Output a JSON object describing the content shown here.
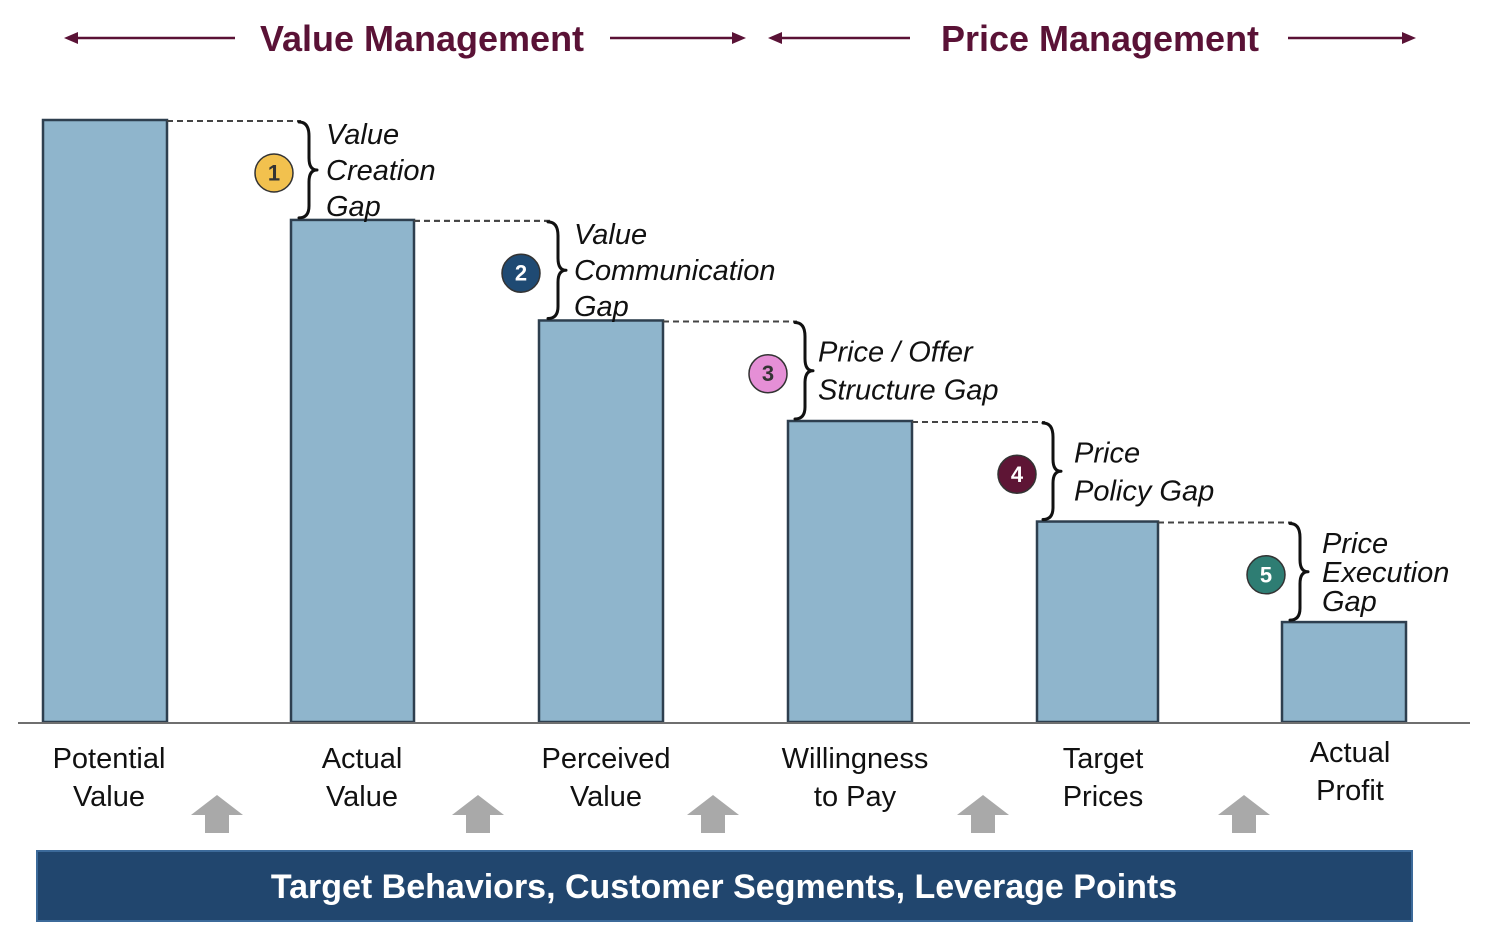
{
  "headers": {
    "value_management": "Value Management",
    "price_management": "Price Management"
  },
  "bars": [
    {
      "name": "potential-value",
      "label": [
        "Potential",
        "Value"
      ],
      "level": 1.0
    },
    {
      "name": "actual-value",
      "label": [
        "Actual",
        "Value"
      ],
      "level": 0.834
    },
    {
      "name": "perceived-value",
      "label": [
        "Perceived",
        "Value"
      ],
      "level": 0.667
    },
    {
      "name": "willingness-to-pay",
      "label": [
        "Willingness",
        "to Pay"
      ],
      "level": 0.5
    },
    {
      "name": "target-prices",
      "label": [
        "Target",
        "Prices"
      ],
      "level": 0.333
    },
    {
      "name": "actual-profit",
      "label": [
        "Actual",
        "Profit"
      ],
      "level": 0.166
    }
  ],
  "gaps": [
    {
      "number": "1",
      "color": "#f2c14e",
      "text_color": "#333333",
      "label": [
        "Value",
        "Creation",
        "Gap"
      ]
    },
    {
      "number": "2",
      "color": "#1f4a73",
      "text_color": "#ffffff",
      "label": [
        "Value",
        "Communication",
        "Gap"
      ]
    },
    {
      "number": "3",
      "color": "#e58fd6",
      "text_color": "#333333",
      "label": [
        "Price / Offer",
        "Structure Gap"
      ]
    },
    {
      "number": "4",
      "color": "#5e1535",
      "text_color": "#ffffff",
      "label": [
        "Price",
        "Policy Gap"
      ]
    },
    {
      "number": "5",
      "color": "#2e7d73",
      "text_color": "#ffffff",
      "label": [
        "Price",
        "Execution",
        "Gap"
      ]
    }
  ],
  "banner": {
    "text": "Target Behaviors, Customer Segments, Leverage Points"
  },
  "colors": {
    "bar_fill": "#8fb5cc",
    "header": "#5a1236",
    "banner": "#21466e"
  }
}
